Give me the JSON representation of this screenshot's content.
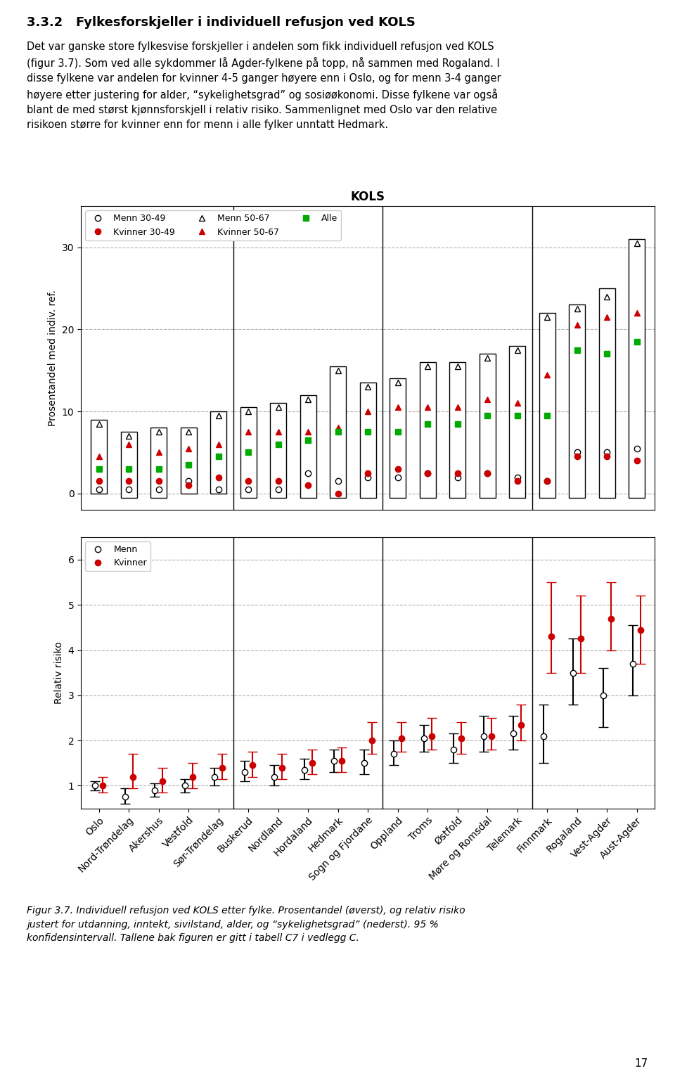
{
  "title": "3.3.2   Fylkesforskjeller i individuell refusjon ved KOLS",
  "subtitle": "Det var ganske store fylkesvise forskjeller i andelen som fikk individuell refusjon ved KOLS\n(figur 3.7). Som ved alle sykdommer lå Agder-fylkene på topp, nå sammen med Rogaland. I\ndisse fylkene var andelen for kvinner 4-5 ganger høyere enn i Oslo, og for menn 3-4 ganger\nhøyere etter justering for alder, “sykelighetsgrad” og sosiøøkonomi. Disse fylkene var også\nblant de med størst kjønnsforskjell i relativ risiko. Sammenlignet med Oslo var den relative\nrisikoen større for kvinner enn for menn i alle fylker unntatt Hedmark.",
  "annotations": [
    "Figur 3.7. Individuell refusjon ved KOLS etter fylke. Prosentandel (øverst), og relativ risiko\njustert for utdanning, inntekt, sivilstand, alder, og “sykelighetsgrad” (nederst). 95 %\nkonfidensintervall. Tallene bak figuren er gitt i tabell C7 i vedlegg C.",
    "17"
  ],
  "chart_data": [
    {
      "type": "bar",
      "title": "KOLS",
      "ylabel": "Prosentandel med indiv. ref.",
      "categories": [
        "Oslo",
        "Nord-Trøndelag",
        "Akershus",
        "Vestfold",
        "Sør-Trøndelag",
        "Buskerud",
        "Nordland",
        "Hordaland",
        "Hedmark",
        "Sogn og Fjordane",
        "Oppland",
        "Troms",
        "Østfold",
        "Møre og Romsdal",
        "Telemark",
        "Finnmark",
        "Rogaland",
        "Vest-Agder",
        "Aust-Agder"
      ],
      "ylim": [
        -2,
        35
      ],
      "yticks": [
        0,
        10,
        20,
        30
      ],
      "grid": "y",
      "legend": "upper left",
      "tick_labels": "y",
      "annotations": [
        {
          "type": "vline",
          "x": 4.5
        },
        {
          "type": "vline",
          "x": 9.5
        },
        {
          "type": "vline",
          "x": 14.5
        }
      ],
      "series": [
        {
          "type": "bar",
          "color": "white",
          "low": [
            0,
            -0.5,
            -0.5,
            0,
            0,
            -0.5,
            -0.5,
            -0.5,
            -0.5,
            -0.5,
            -0.5,
            -0.5,
            -0.5,
            -0.5,
            -0.5,
            -0.5,
            -0.5,
            -0.5,
            -0.5
          ],
          "high": [
            9,
            7.5,
            8,
            8,
            10,
            10.5,
            11,
            12,
            15.5,
            13.5,
            14,
            16,
            16,
            17,
            18,
            22,
            23,
            25,
            31
          ]
        },
        {
          "name": "Menn 30-49",
          "type": "scatter",
          "marker": "circle_open",
          "color": "black",
          "values": [
            0.5,
            0.5,
            0.5,
            1.5,
            0.5,
            0.5,
            0.5,
            2.5,
            1.5,
            2.0,
            2.0,
            2.5,
            2.0,
            2.5,
            2.0,
            1.5,
            5.0,
            5.0,
            5.5
          ]
        },
        {
          "name": "Kvinner 30-49",
          "type": "scatter",
          "marker": "circle",
          "color": "#cc0000",
          "values": [
            1.5,
            1.5,
            1.5,
            1.0,
            2.0,
            1.5,
            1.5,
            1.0,
            0.0,
            2.5,
            3.0,
            2.5,
            2.5,
            2.5,
            1.5,
            1.5,
            4.5,
            4.5,
            4.0
          ]
        },
        {
          "name": "Menn 50-67",
          "type": "scatter",
          "marker": "triangle_open",
          "color": "black",
          "values": [
            8.5,
            7.0,
            7.5,
            7.5,
            9.5,
            10.0,
            10.5,
            11.5,
            15.0,
            13.0,
            13.5,
            15.5,
            15.5,
            16.5,
            17.5,
            21.5,
            22.5,
            24.0,
            30.5
          ]
        },
        {
          "name": "Kvinner 50-67",
          "type": "scatter",
          "marker": "triangle",
          "color": "#cc0000",
          "values": [
            4.5,
            6.0,
            5.0,
            5.5,
            6.0,
            7.5,
            7.5,
            7.5,
            8.0,
            10.0,
            10.5,
            10.5,
            10.5,
            11.5,
            11.0,
            14.5,
            20.5,
            21.5,
            22.0
          ]
        },
        {
          "name": "Alle",
          "type": "scatter",
          "marker": "square",
          "color": "#00aa00",
          "values": [
            3.0,
            3.0,
            3.0,
            3.5,
            4.5,
            5.0,
            6.0,
            6.5,
            7.5,
            7.5,
            7.5,
            8.5,
            8.5,
            9.5,
            9.5,
            9.5,
            17.5,
            17.0,
            18.5
          ]
        }
      ]
    },
    {
      "type": "scatter",
      "ylabel": "Relativ risiko",
      "categories": [
        "Oslo",
        "Nord-Trøndelag",
        "Akershus",
        "Vestfold",
        "Sør-Trøndelag",
        "Buskerud",
        "Nordland",
        "Hordaland",
        "Hedmark",
        "Sogn og Fjordane",
        "Oppland",
        "Troms",
        "Østfold",
        "Møre og Romsdal",
        "Telemark",
        "Finnmark",
        "Rogaland",
        "Vest-Agder",
        "Aust-Agder"
      ],
      "ylim": [
        0.5,
        6.5
      ],
      "yticks": [
        1,
        2,
        3,
        4,
        5,
        6
      ],
      "grid": "y",
      "legend": "upper left",
      "annotations": [
        {
          "type": "vline",
          "x": 4.5
        },
        {
          "type": "vline",
          "x": 9.5
        },
        {
          "type": "vline",
          "x": 14.5
        }
      ],
      "series": [
        {
          "name": "Menn",
          "type": "scatter",
          "marker": "circle_open",
          "color": "black",
          "values": [
            1.0,
            0.75,
            0.9,
            1.0,
            1.2,
            1.3,
            1.2,
            1.35,
            1.55,
            1.5,
            1.7,
            2.05,
            1.8,
            2.1,
            2.15,
            2.1,
            3.5,
            3.0,
            3.7
          ],
          "ci_low": [
            0.9,
            0.6,
            0.75,
            0.85,
            1.0,
            1.1,
            1.0,
            1.15,
            1.3,
            1.25,
            1.45,
            1.75,
            1.5,
            1.75,
            1.8,
            1.5,
            2.8,
            2.3,
            3.0
          ],
          "ci_high": [
            1.1,
            0.95,
            1.05,
            1.15,
            1.4,
            1.55,
            1.45,
            1.6,
            1.8,
            1.8,
            2.0,
            2.35,
            2.15,
            2.55,
            2.55,
            2.8,
            4.25,
            3.6,
            4.55
          ]
        },
        {
          "name": "Kvinner",
          "type": "scatter",
          "marker": "circle",
          "color": "#cc0000",
          "values": [
            1.0,
            1.2,
            1.1,
            1.2,
            1.4,
            1.45,
            1.4,
            1.5,
            1.55,
            2.0,
            2.05,
            2.1,
            2.05,
            2.1,
            2.35,
            4.3,
            4.25,
            4.7,
            4.45
          ],
          "ci_low": [
            0.85,
            0.95,
            0.85,
            0.95,
            1.15,
            1.2,
            1.15,
            1.25,
            1.3,
            1.7,
            1.75,
            1.8,
            1.7,
            1.8,
            2.0,
            3.5,
            3.5,
            4.0,
            3.7
          ],
          "ci_high": [
            1.2,
            1.7,
            1.4,
            1.5,
            1.7,
            1.75,
            1.7,
            1.8,
            1.85,
            2.4,
            2.4,
            2.5,
            2.4,
            2.5,
            2.8,
            5.5,
            5.2,
            5.5,
            5.2
          ]
        }
      ]
    }
  ]
}
